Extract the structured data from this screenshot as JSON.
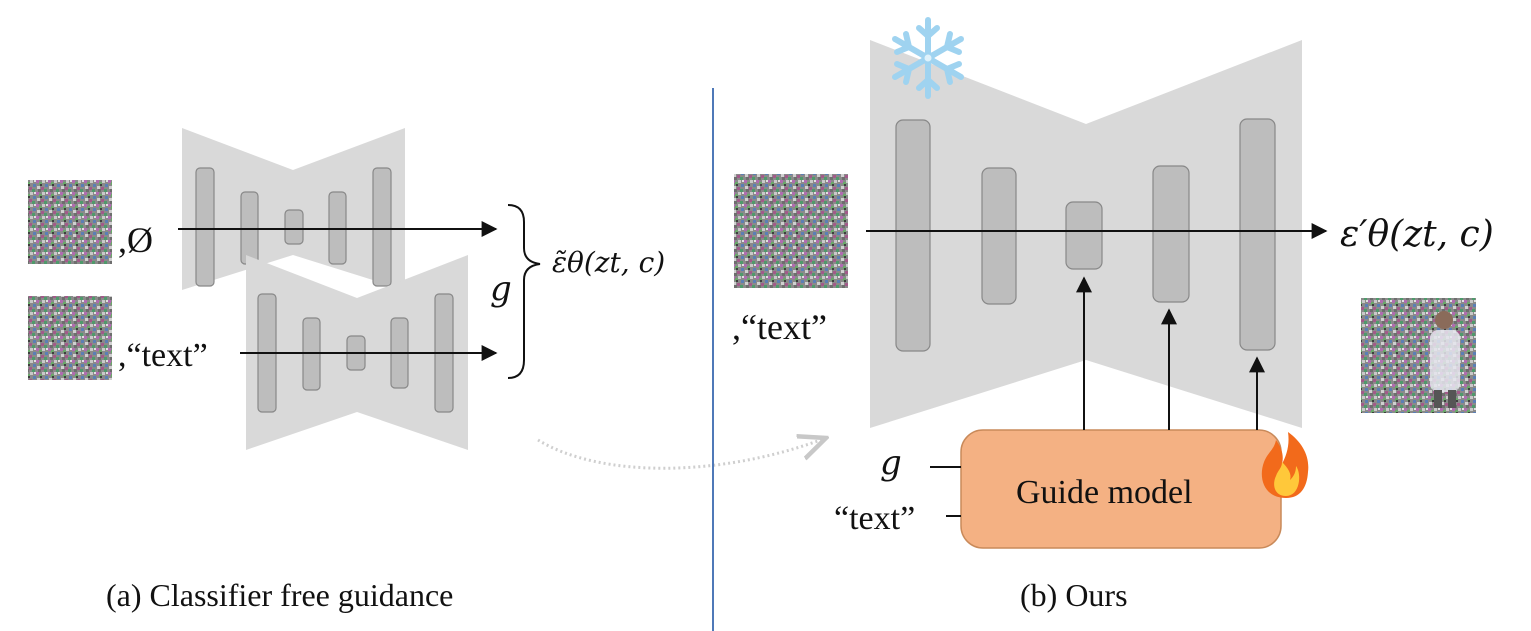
{
  "left_panel": {
    "caption": "(a) Classifier free guidance",
    "null_label": ",Ø",
    "text_label": ",“text”",
    "guidance_symbol": "g",
    "output_label": "ε̃θ(zt, c)"
  },
  "right_panel": {
    "caption": "(b) Ours",
    "text_label": ",“text”",
    "output_label": "ε′θ(zt, c)",
    "guide_model_label": "Guide model",
    "guidance_input": "g",
    "text_input": "“text”",
    "frozen_icon": "snowflake-icon",
    "trainable_icon": "fire-icon"
  },
  "colors": {
    "unet_fill": "#d9d9d9",
    "block_fill": "#bdbdbd",
    "guide_fill": "#f4b183",
    "guide_stroke": "#c98a5a",
    "divider": "#4f79b8",
    "snowflake": "#9fd3f0",
    "fire": "#f26a1b"
  }
}
